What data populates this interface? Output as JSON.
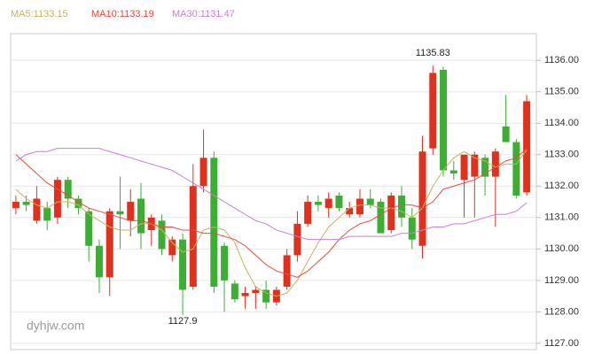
{
  "chart_data": {
    "type": "candlestick",
    "watermark": "dyhjw.com",
    "up_color": "#e0301e",
    "down_color": "#3cae34",
    "open": [
      1131.3,
      1131.5,
      1130.9,
      1131.3,
      1131.0,
      1132.2,
      1131.6,
      1131.2,
      1130.1,
      1129.1,
      1131.2,
      1130.9,
      1131.6,
      1130.6,
      1130.9,
      1129.8,
      1130.3,
      1128.8,
      1132.0,
      1132.9,
      1130.1,
      1128.9,
      1128.5,
      1128.6,
      1128.7,
      1128.3,
      1128.8,
      1129.8,
      1130.8,
      1131.5,
      1131.3,
      1131.7,
      1131.1,
      1131.1,
      1131.6,
      1131.5,
      1130.6,
      1131.7,
      1131.0,
      1130.1,
      1133.2,
      1135.7,
      1132.5,
      1132.2,
      1132.3,
      1132.9,
      1132.3,
      1133.9,
      1133.4,
      1131.8
    ],
    "high": [
      1131.7,
      1131.7,
      1132.0,
      1131.5,
      1132.3,
      1132.3,
      1131.7,
      1131.3,
      1130.3,
      1131.3,
      1132.3,
      1131.9,
      1132.1,
      1131.1,
      1131.1,
      1130.4,
      1130.5,
      1132.7,
      1133.8,
      1133.1,
      1130.2,
      1129.0,
      1128.8,
      1128.8,
      1129.0,
      1128.8,
      1130.0,
      1131.2,
      1131.7,
      1131.7,
      1131.8,
      1131.8,
      1131.5,
      1131.9,
      1131.9,
      1131.6,
      1131.8,
      1132.0,
      1131.3,
      1133.6,
      1135.83,
      1135.8,
      1132.8,
      1133.0,
      1133.1,
      1133.0,
      1133.2,
      1134.9,
      1133.5,
      1134.9
    ],
    "low": [
      1131.1,
      1131.2,
      1130.8,
      1130.6,
      1130.8,
      1131.3,
      1131.1,
      1129.6,
      1128.6,
      1128.5,
      1130.0,
      1130.4,
      1130.0,
      1130.1,
      1129.8,
      1129.6,
      1127.9,
      1128.7,
      1131.8,
      1128.6,
      1128.0,
      1128.3,
      1128.1,
      1128.1,
      1128.1,
      1128.2,
      1128.7,
      1129.6,
      1130.7,
      1131.2,
      1131.0,
      1131.2,
      1131.0,
      1131.0,
      1131.3,
      1130.5,
      1130.5,
      1130.7,
      1130.0,
      1129.7,
      1133.0,
      1132.3,
      1132.2,
      1131.0,
      1131.0,
      1131.7,
      1130.7,
      1133.4,
      1131.6,
      1131.7
    ],
    "close": [
      1131.5,
      1131.4,
      1131.6,
      1130.9,
      1132.2,
      1131.6,
      1131.3,
      1130.1,
      1129.1,
      1131.2,
      1131.1,
      1131.5,
      1130.5,
      1131.0,
      1130.0,
      1130.3,
      1128.7,
      1132.0,
      1132.9,
      1128.8,
      1129.0,
      1128.4,
      1128.6,
      1128.7,
      1128.3,
      1128.7,
      1129.8,
      1130.8,
      1131.5,
      1131.4,
      1131.6,
      1131.3,
      1131.3,
      1131.6,
      1131.4,
      1130.5,
      1131.7,
      1131.0,
      1130.3,
      1133.1,
      1135.6,
      1132.5,
      1132.4,
      1133.0,
      1133.0,
      1132.3,
      1133.1,
      1133.4,
      1131.7,
      1134.7
    ],
    "series": [
      {
        "name": "MA5:1133.15",
        "color": "#c4b45a",
        "values": [
          1131.9,
          1131.6,
          1131.4,
          1131.3,
          1131.5,
          1131.5,
          1131.4,
          1131.1,
          1130.9,
          1130.7,
          1130.6,
          1130.6,
          1130.8,
          1130.8,
          1130.6,
          1130.2,
          1129.9,
          1130.0,
          1130.6,
          1130.7,
          1130.6,
          1130.2,
          1129.4,
          1128.8,
          1128.6,
          1128.5,
          1128.6,
          1129.0,
          1129.6,
          1130.2,
          1130.7,
          1131.0,
          1131.3,
          1131.4,
          1131.4,
          1131.3,
          1131.3,
          1131.2,
          1131.0,
          1131.3,
          1132.0,
          1132.5,
          1132.9,
          1133.1,
          1132.9,
          1132.8,
          1132.6,
          1132.7,
          1132.7,
          1133.15
        ]
      },
      {
        "name": "MA10:1133.19",
        "color": "#ee4b3b",
        "values": [
          1133.0,
          1132.7,
          1132.4,
          1132.1,
          1131.9,
          1131.7,
          1131.5,
          1131.3,
          1131.2,
          1131.1,
          1131.0,
          1130.9,
          1130.9,
          1130.8,
          1130.7,
          1130.7,
          1130.6,
          1130.6,
          1130.5,
          1130.5,
          1130.4,
          1130.3,
          1130.1,
          1129.8,
          1129.5,
          1129.3,
          1129.2,
          1129.1,
          1129.3,
          1129.6,
          1129.9,
          1130.3,
          1130.6,
          1130.8,
          1130.9,
          1131.1,
          1131.3,
          1131.4,
          1131.4,
          1131.3,
          1131.5,
          1131.9,
          1132.0,
          1132.1,
          1132.2,
          1132.4,
          1132.6,
          1132.8,
          1132.9,
          1133.19
        ]
      },
      {
        "name": "MA30:1131.47",
        "color": "#c87fd4",
        "values": [
          1132.8,
          1133.0,
          1133.1,
          1133.1,
          1133.2,
          1133.2,
          1133.2,
          1133.2,
          1133.2,
          1133.1,
          1133.0,
          1132.9,
          1132.8,
          1132.7,
          1132.6,
          1132.5,
          1132.3,
          1132.1,
          1131.9,
          1131.7,
          1131.5,
          1131.3,
          1131.1,
          1130.9,
          1130.8,
          1130.6,
          1130.5,
          1130.4,
          1130.3,
          1130.3,
          1130.3,
          1130.3,
          1130.4,
          1130.4,
          1130.4,
          1130.4,
          1130.4,
          1130.5,
          1130.5,
          1130.6,
          1130.7,
          1130.7,
          1130.8,
          1130.8,
          1130.9,
          1131.0,
          1131.1,
          1131.1,
          1131.2,
          1131.47
        ]
      }
    ],
    "max_label": 1135.83,
    "min_label": 1127.9,
    "ylim": [
      1126.8,
      1136.85
    ],
    "yticks": [
      {
        "value": 1127,
        "label": "1127.00"
      },
      {
        "value": 1128,
        "label": "1128.00"
      },
      {
        "value": 1129,
        "label": "1129.00"
      },
      {
        "value": 1130,
        "label": "1130.00"
      },
      {
        "value": 1131,
        "label": "1131.00"
      },
      {
        "value": 1132,
        "label": "1132.00"
      },
      {
        "value": 1133,
        "label": "1133.00"
      },
      {
        "value": 1134,
        "label": "1134.00"
      },
      {
        "value": 1135,
        "label": "1135.00"
      },
      {
        "value": 1136,
        "label": "1136.00"
      }
    ],
    "grid": true
  }
}
